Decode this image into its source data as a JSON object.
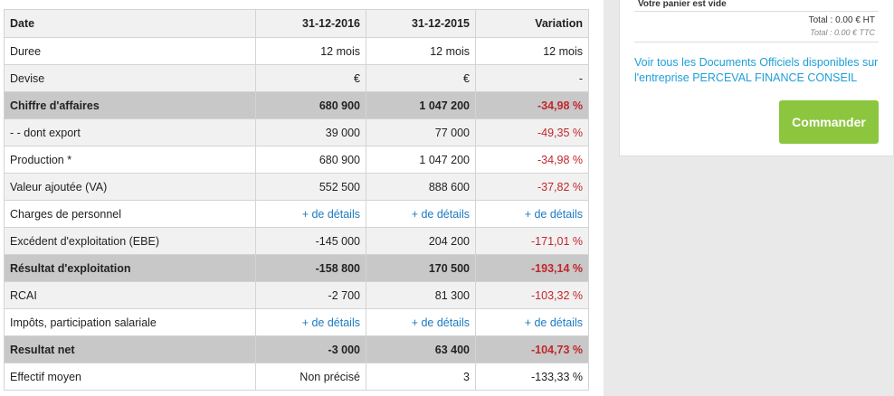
{
  "table": {
    "headers": [
      "Date",
      "31-12-2016",
      "31-12-2015",
      "Variation"
    ],
    "rows": [
      {
        "label": "Duree",
        "v2016": "12 mois",
        "v2015": "12 mois",
        "var": "12 mois",
        "style": "plain"
      },
      {
        "label": "Devise",
        "v2016": "€",
        "v2015": "€",
        "var": "-",
        "style": "alt"
      },
      {
        "label": "Chiffre d'affaires",
        "v2016": "680 900",
        "v2015": "1 047 200",
        "var": "-34,98 %",
        "style": "bold",
        "var_neg": true
      },
      {
        "label": "- - dont export",
        "v2016": "39 000",
        "v2015": "77 000",
        "var": "-49,35 %",
        "style": "alt",
        "var_neg": true
      },
      {
        "label": "Production *",
        "v2016": "680 900",
        "v2015": "1 047 200",
        "var": "-34,98 %",
        "style": "plain",
        "var_neg": true
      },
      {
        "label": "Valeur ajoutée (VA)",
        "v2016": "552 500",
        "v2015": "888 600",
        "var": "-37,82 %",
        "style": "alt",
        "var_neg": true
      },
      {
        "label": "Charges de personnel",
        "v2016": "+ de détails",
        "v2015": "+ de détails",
        "var": "+ de détails",
        "style": "plain",
        "links": true
      },
      {
        "label": "Excédent d'exploitation (EBE)",
        "v2016": "-145 000",
        "v2015": "204 200",
        "var": "-171,01 %",
        "style": "alt",
        "var_neg": true
      },
      {
        "label": "Résultat d'exploitation",
        "v2016": "-158 800",
        "v2015": "170 500",
        "var": "-193,14 %",
        "style": "bold",
        "var_neg": true
      },
      {
        "label": "RCAI",
        "v2016": "-2 700",
        "v2015": "81 300",
        "var": "-103,32 %",
        "style": "alt",
        "var_neg": true
      },
      {
        "label": "Impôts, participation salariale",
        "v2016": "+ de détails",
        "v2015": "+ de détails",
        "var": "+ de détails",
        "style": "plain",
        "links": true
      },
      {
        "label": "Resultat net",
        "v2016": "-3 000",
        "v2015": "63 400",
        "var": "-104,73 %",
        "style": "bold",
        "var_neg": true
      },
      {
        "label": "Effectif moyen",
        "v2016": "Non précisé",
        "v2015": "3",
        "var": "-133,33 %",
        "style": "plain"
      }
    ]
  },
  "cart": {
    "empty_text": "Votre panier est vide",
    "total_ht": "Total : 0.00 € HT",
    "total_ttc": "Total : 0.00 € TTC",
    "docs_link": "Voir tous les Documents Officiels disponibles sur l'entreprise PERCEVAL FINANCE CONSEIL",
    "order_button": "Commander"
  },
  "colors": {
    "negative": "#c0272d",
    "link": "#1f7bc1",
    "order_button": "#8cc63f"
  }
}
